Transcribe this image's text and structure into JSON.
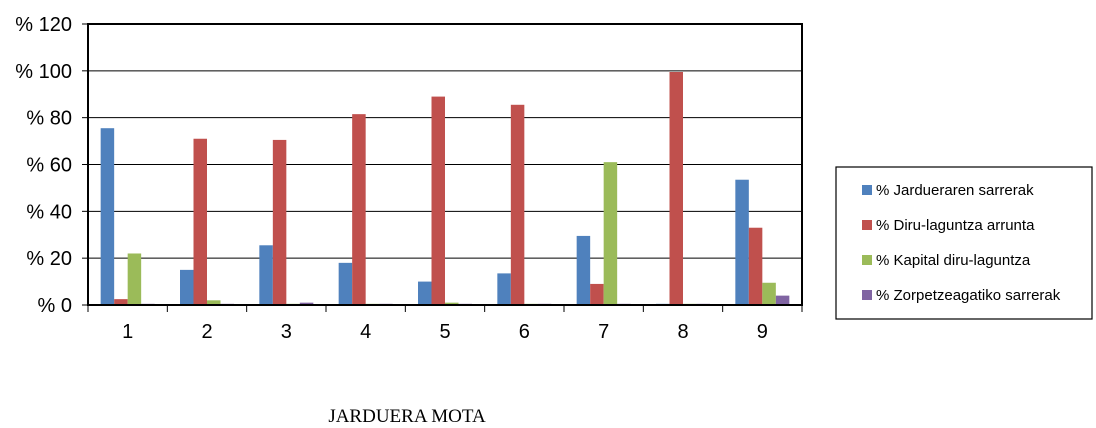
{
  "chart_data": {
    "type": "bar",
    "xlabel": "JARDUERA MOTA",
    "ylabel": "",
    "categories": [
      "1",
      "2",
      "3",
      "4",
      "5",
      "6",
      "7",
      "8",
      "9"
    ],
    "y_tick_labels": [
      "% 0",
      "% 20",
      "% 40",
      "% 60",
      "% 80",
      "% 100",
      "% 120"
    ],
    "ylim": [
      0,
      120
    ],
    "grid": true,
    "legend_position": "right",
    "series": [
      {
        "name": "% Jardueraren sarrerak",
        "color": "#4f81bd",
        "values": [
          75.5,
          15,
          25.5,
          18,
          10,
          13.5,
          29.5,
          0.5,
          53.5
        ]
      },
      {
        "name": "% Diru-laguntza arrunta",
        "color": "#c0504d",
        "values": [
          2.5,
          71,
          70.5,
          81.5,
          89,
          85.5,
          9,
          99.5,
          33
        ]
      },
      {
        "name": "% Kapital diru-laguntza",
        "color": "#9bbb59",
        "values": [
          22,
          2,
          0.5,
          0.5,
          1,
          0.5,
          61,
          0.5,
          9.5
        ]
      },
      {
        "name": "% Zorpetzeagatiko sarrerak",
        "color": "#8064a2",
        "values": [
          0.5,
          0.5,
          1,
          0.5,
          0.5,
          0.5,
          0.5,
          0.5,
          4
        ]
      }
    ]
  }
}
